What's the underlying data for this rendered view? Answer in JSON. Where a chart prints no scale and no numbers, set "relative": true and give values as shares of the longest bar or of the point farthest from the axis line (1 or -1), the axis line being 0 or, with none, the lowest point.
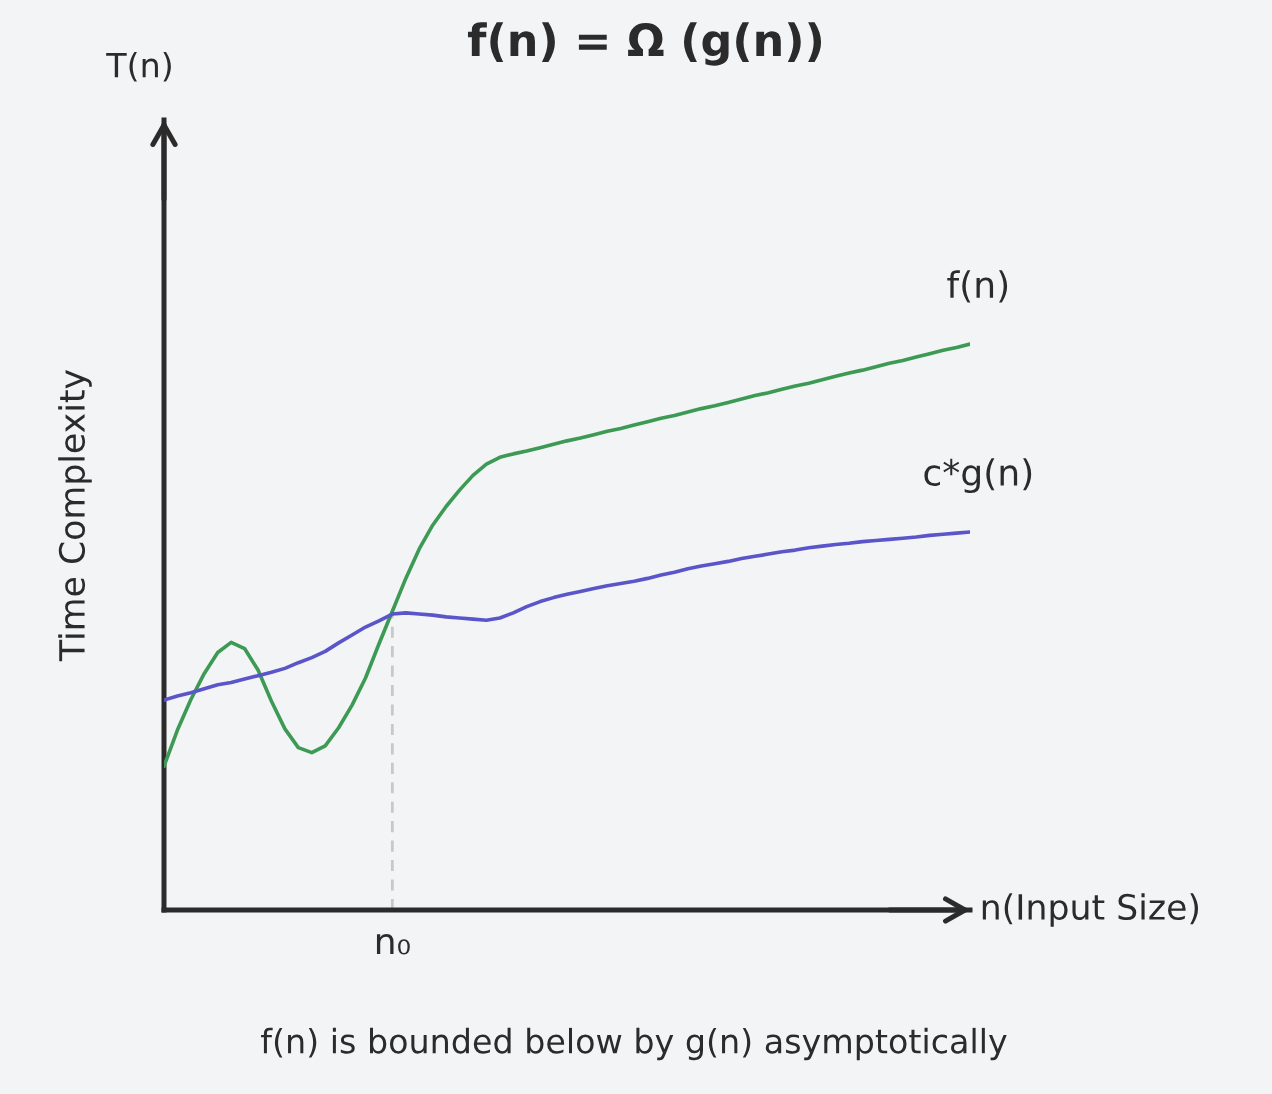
{
  "chart_data": {
    "type": "line",
    "title": "f(n) = Ω (g(n))",
    "xlabel": "n(Input Size)",
    "ylabel": "Time Complexity",
    "annotations": [
      "T(n)",
      "n₀",
      "f(n) is bounded below by g(n) asymptotically"
    ],
    "relative": true,
    "categories": [
      null,
      null,
      null,
      null,
      null,
      null,
      null,
      null,
      null,
      null,
      null,
      null,
      null,
      null,
      null,
      null,
      null,
      null,
      null,
      null,
      null,
      null,
      null,
      null,
      null,
      null,
      null,
      null,
      null,
      null,
      null,
      null,
      null,
      null,
      null,
      null,
      null,
      null,
      null,
      null,
      null,
      null,
      null,
      null,
      null,
      null,
      null,
      null,
      null,
      null,
      null,
      null,
      null,
      null,
      null,
      null,
      null,
      null,
      null,
      null,
      null
    ],
    "series": [
      {
        "name": "f(n)",
        "color": "#3c9a54",
        "values": [
          0.254,
          0.318,
          0.372,
          0.418,
          0.455,
          0.473,
          0.462,
          0.424,
          0.369,
          0.32,
          0.287,
          0.278,
          0.29,
          0.322,
          0.362,
          0.41,
          0.47,
          0.528,
          0.586,
          0.638,
          0.68,
          0.713,
          0.742,
          0.768,
          0.788,
          0.8,
          0.806,
          0.811,
          0.817,
          0.823,
          0.829,
          0.834,
          0.84,
          0.846,
          0.851,
          0.857,
          0.863,
          0.869,
          0.874,
          0.88,
          0.886,
          0.891,
          0.897,
          0.903,
          0.909,
          0.914,
          0.92,
          0.926,
          0.931,
          0.937,
          0.943,
          0.949,
          0.954,
          0.96,
          0.966,
          0.971,
          0.977,
          0.983,
          0.989,
          0.994,
          1.0
        ]
      },
      {
        "name": "c*g(n)",
        "color": "#5a55c9",
        "values": [
          0.371,
          0.378,
          0.384,
          0.391,
          0.398,
          0.402,
          0.408,
          0.414,
          0.42,
          0.427,
          0.437,
          0.446,
          0.457,
          0.472,
          0.486,
          0.5,
          0.511,
          0.523,
          0.525,
          0.523,
          0.521,
          0.518,
          0.516,
          0.514,
          0.512,
          0.516,
          0.525,
          0.536,
          0.545,
          0.552,
          0.558,
          0.563,
          0.568,
          0.573,
          0.577,
          0.581,
          0.586,
          0.592,
          0.597,
          0.603,
          0.608,
          0.612,
          0.616,
          0.621,
          0.625,
          0.629,
          0.633,
          0.636,
          0.64,
          0.643,
          0.646,
          0.648,
          0.651,
          0.653,
          0.655,
          0.657,
          0.659,
          0.662,
          0.664,
          0.666,
          0.668
        ]
      }
    ]
  }
}
